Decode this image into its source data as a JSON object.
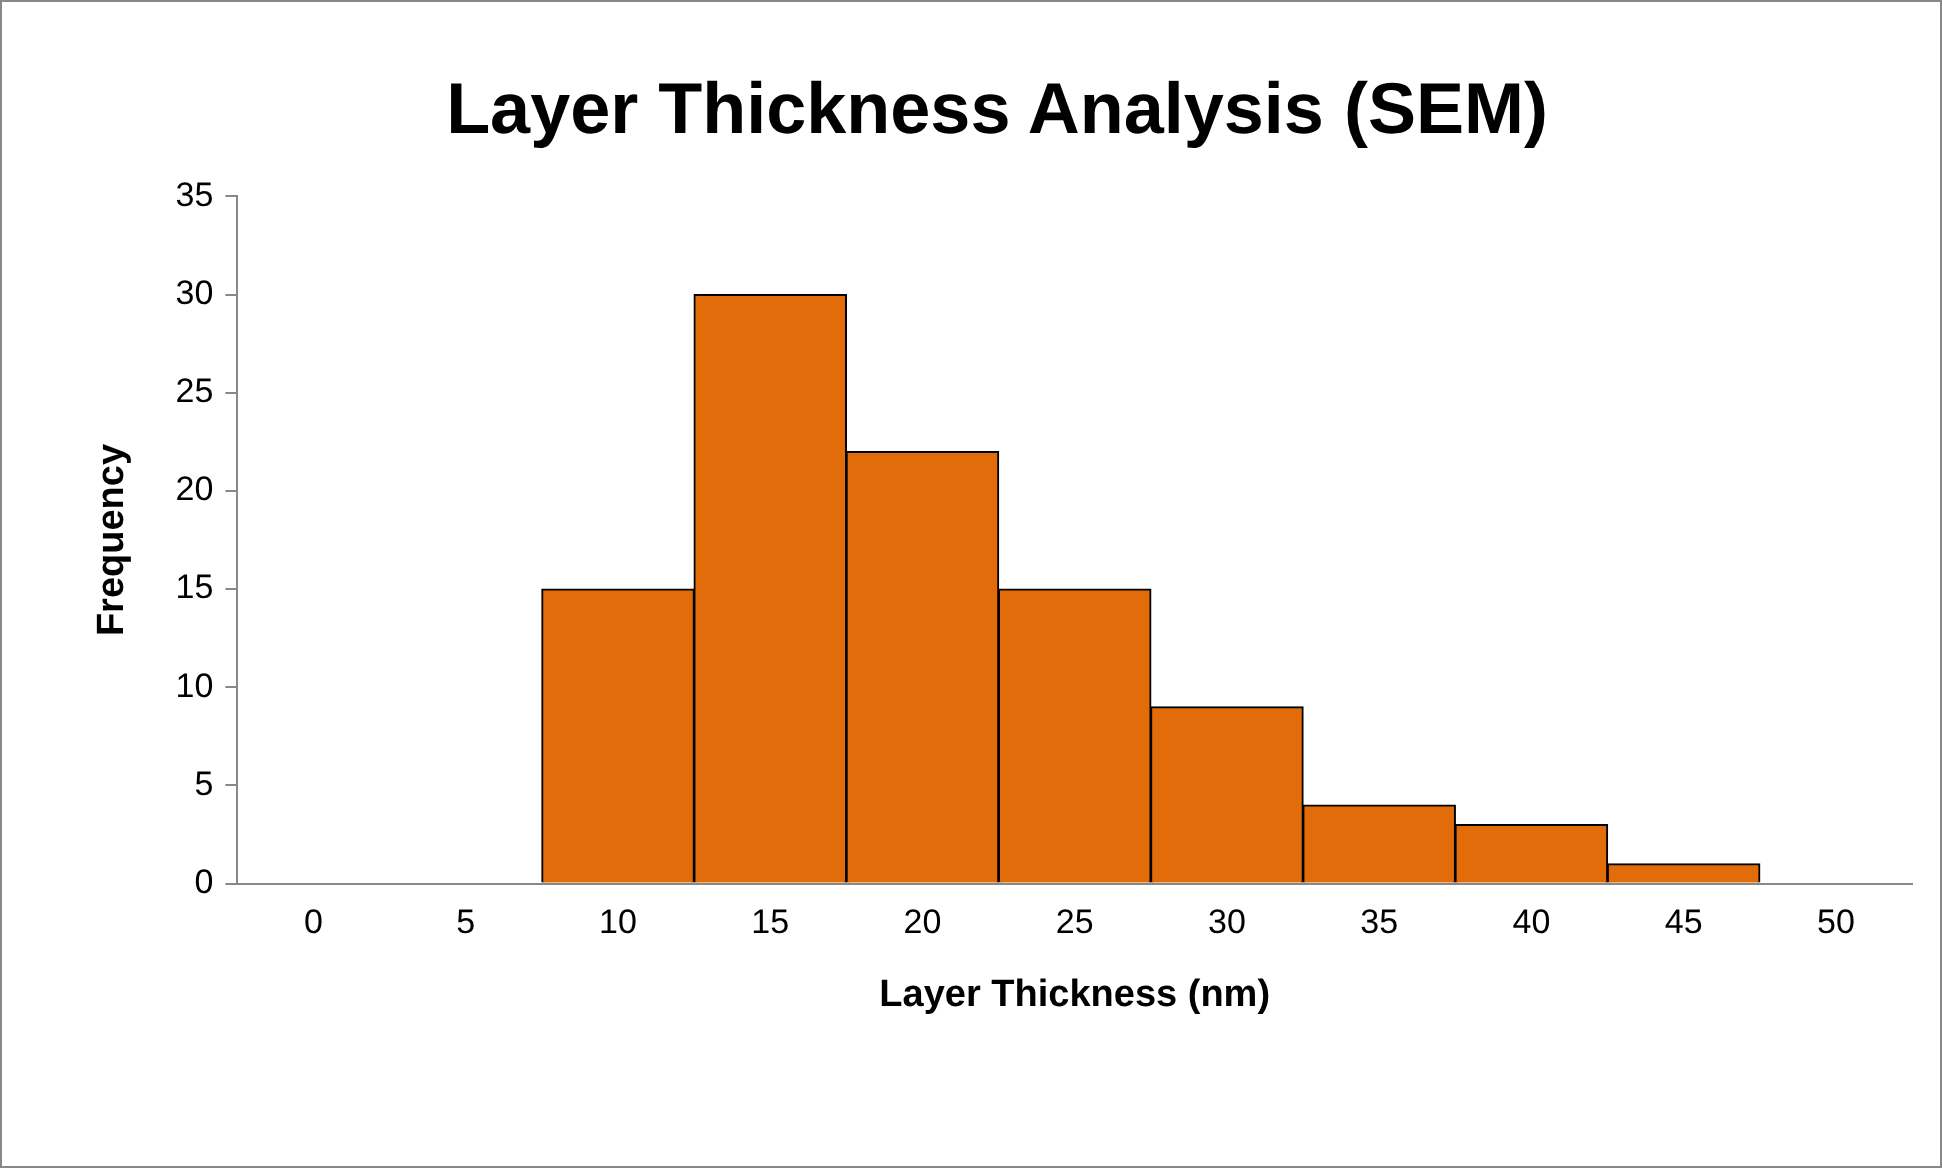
{
  "chart_data": {
    "type": "bar",
    "title": "Layer Thickness Analysis (SEM)",
    "xlabel": "Layer Thickness (nm)",
    "ylabel": "Frequency",
    "categories": [
      "0",
      "5",
      "10",
      "15",
      "20",
      "25",
      "30",
      "35",
      "40",
      "45",
      "50"
    ],
    "values": [
      0,
      0,
      15,
      30,
      22,
      15,
      9,
      4,
      3,
      1,
      0
    ],
    "color": "#e36c0a",
    "ylim": [
      0,
      35
    ],
    "yticks": [
      0,
      5,
      10,
      15,
      20,
      25,
      30,
      35
    ]
  }
}
